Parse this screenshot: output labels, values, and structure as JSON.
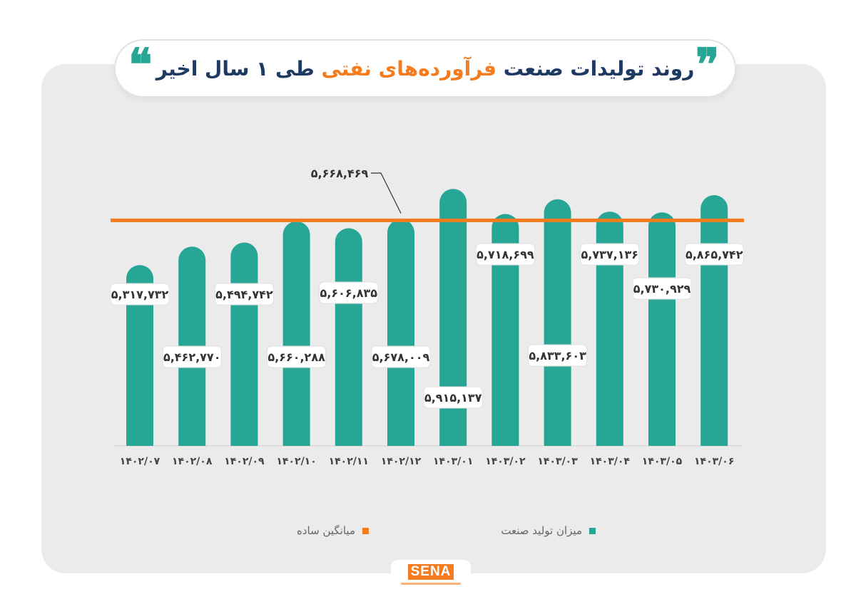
{
  "header": {
    "title_part1": "روند تولیدات صنعت",
    "title_highlight": "فرآورده‌های نفتی",
    "title_part2": "طی ۱ سال اخیر",
    "quote_mark_right": "❞",
    "quote_mark_left": "❝"
  },
  "chart_data": {
    "type": "bar",
    "categories": [
      "۱۴۰۲/۰۷",
      "۱۴۰۲/۰۸",
      "۱۴۰۲/۰۹",
      "۱۴۰۲/۱۰",
      "۱۴۰۲/۱۱",
      "۱۴۰۲/۱۲",
      "۱۴۰۳/۰۱",
      "۱۴۰۳/۰۲",
      "۱۴۰۳/۰۳",
      "۱۴۰۳/۰۴",
      "۱۴۰۳/۰۵",
      "۱۴۰۳/۰۶"
    ],
    "series": [
      {
        "name": "میزان تولید صنعت",
        "values": [
          5317732,
          5462770,
          5494742,
          5660288,
          5606835,
          5678009,
          5915137,
          5718699,
          5833603,
          5737136,
          5730929,
          5865742
        ],
        "labels": [
          "۵,۳۱۷,۷۳۲",
          "۵,۴۶۲,۷۷۰",
          "۵,۴۹۴,۷۴۲",
          "۵,۶۶۰,۲۸۸",
          "۵,۶۰۶,۸۳۵",
          "۵,۶۷۸,۰۰۹",
          "۵,۹۱۵,۱۳۷",
          "۵,۷۱۸,۶۹۹",
          "۵,۸۳۳,۶۰۳",
          "۵,۷۳۷,۱۳۶",
          "۵,۷۳۰,۹۲۹",
          "۵,۸۶۵,۷۴۲"
        ],
        "color": "#27a595"
      }
    ],
    "average": {
      "name": "میانگین ساده",
      "value": 5668469,
      "label": "۵,۶۶۸,۴۶۹",
      "color": "#f47c1e"
    },
    "legend_position": "bottom",
    "grid": false,
    "ylim": [
      3900000,
      6000000
    ]
  },
  "footer": {
    "logo_text": "SENA"
  }
}
